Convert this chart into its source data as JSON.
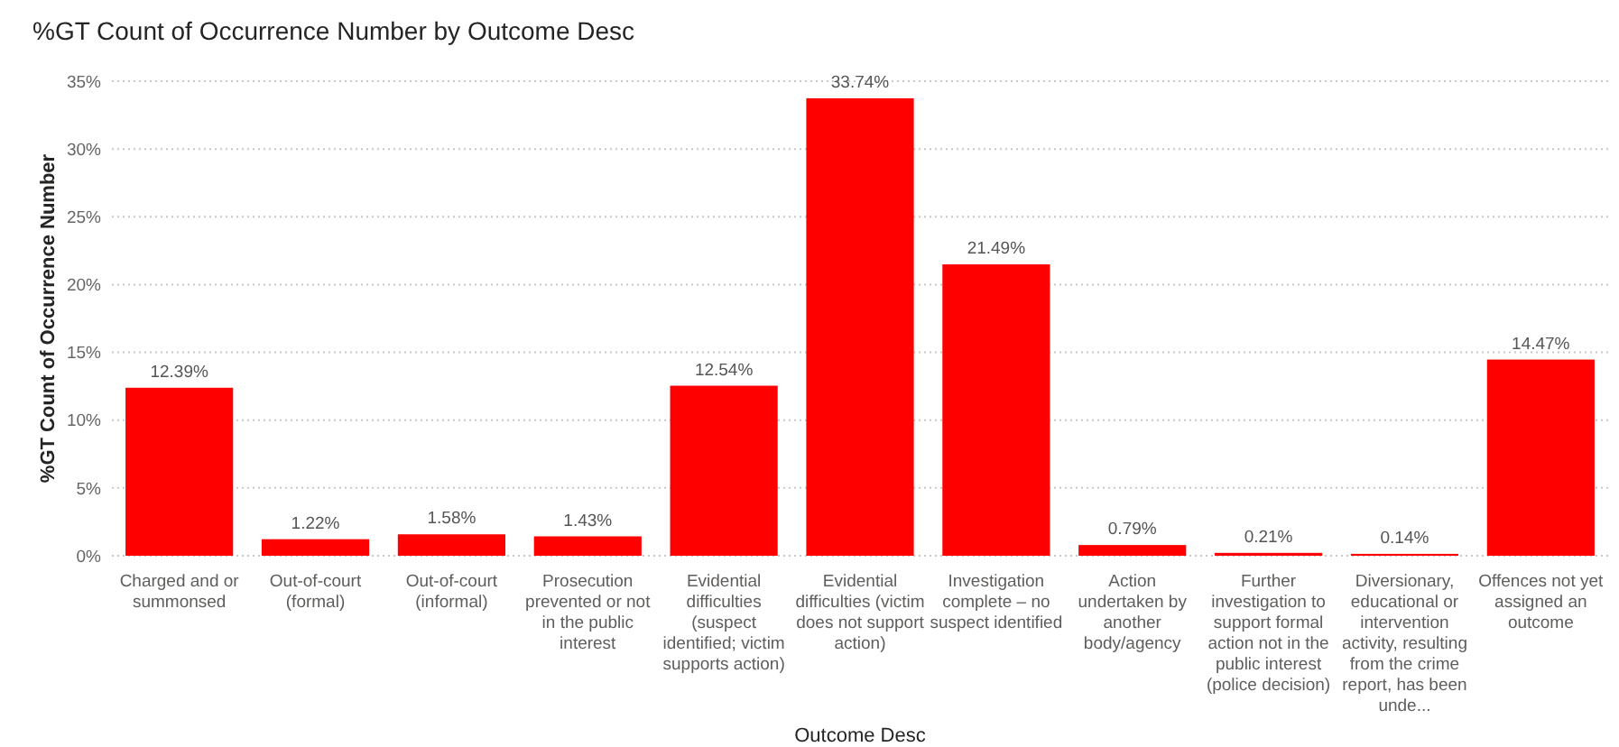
{
  "chart_data": {
    "type": "bar",
    "title": "%GT Count of Occurrence Number by Outcome Desc",
    "xlabel": "Outcome Desc",
    "ylabel": "%GT Count of Occurrence Number",
    "categories": [
      "Charged and or summonsed",
      "Out-of-court (formal)",
      "Out-of-court (informal)",
      "Prosecution prevented or not in the public interest",
      "Evidential difficulties (suspect identified; victim supports action)",
      "Evidential difficulties (victim does not support action)",
      "Investigation complete – no suspect identified",
      "Action undertaken by another body/agency",
      "Further investigation to support formal action not in the public interest (police decision)",
      "Diversionary, educational or intervention activity, resulting from the crime report, has been unde...",
      "Offences not yet assigned an outcome"
    ],
    "values": [
      12.39,
      1.22,
      1.58,
      1.43,
      12.54,
      33.74,
      21.49,
      0.79,
      0.21,
      0.14,
      14.47
    ],
    "value_labels": [
      "12.39%",
      "1.22%",
      "1.58%",
      "1.43%",
      "12.54%",
      "33.74%",
      "21.49%",
      "0.79%",
      "0.21%",
      "0.14%",
      "14.47%"
    ],
    "color": "#ff0000",
    "ylim": [
      0,
      35
    ],
    "yticks": [
      {
        "value": 0,
        "label": "0%"
      },
      {
        "value": 5,
        "label": "5%"
      },
      {
        "value": 10,
        "label": "10%"
      },
      {
        "value": 15,
        "label": "15%"
      },
      {
        "value": 20,
        "label": "20%"
      },
      {
        "value": 25,
        "label": "25%"
      },
      {
        "value": 30,
        "label": "30%"
      },
      {
        "value": 35,
        "label": "35%"
      }
    ],
    "grid": "y"
  }
}
